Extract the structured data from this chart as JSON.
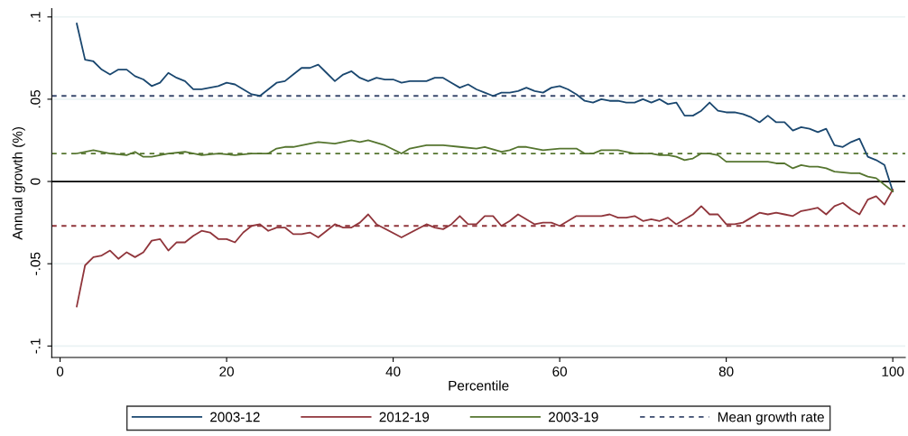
{
  "chart_data": {
    "type": "line",
    "xlabel": "Percentile",
    "ylabel": "Annual growth (%)",
    "xlim": [
      -1,
      101.5
    ],
    "xticks": [
      0,
      20,
      40,
      60,
      80,
      100
    ],
    "ylim": [
      -0.107,
      0.105
    ],
    "yticks": [
      {
        "value": -0.1,
        "label": "-.1"
      },
      {
        "value": -0.05,
        "label": "-.05"
      },
      {
        "value": 0,
        "label": "0"
      },
      {
        "value": 0.05,
        "label": ".05"
      },
      {
        "value": 0.1,
        "label": ".1"
      }
    ],
    "grid": "y",
    "legend": "bottom",
    "line_style": "solid",
    "marker": "none",
    "series": [
      {
        "name": "2003-12",
        "color": "#1a476f",
        "x": [
          2,
          3,
          4,
          5,
          6,
          7,
          8,
          9,
          10,
          11,
          12,
          13,
          14,
          15,
          16,
          17,
          18,
          19,
          20,
          21,
          22,
          23,
          24,
          25,
          26,
          27,
          28,
          29,
          30,
          31,
          32,
          33,
          34,
          35,
          36,
          37,
          38,
          39,
          40,
          41,
          42,
          43,
          44,
          45,
          46,
          47,
          48,
          49,
          50,
          51,
          52,
          53,
          54,
          55,
          56,
          57,
          58,
          59,
          60,
          61,
          62,
          63,
          64,
          65,
          66,
          67,
          68,
          69,
          70,
          71,
          72,
          73,
          74,
          75,
          76,
          77,
          78,
          79,
          80,
          81,
          82,
          83,
          84,
          85,
          86,
          87,
          88,
          89,
          90,
          91,
          92,
          93,
          94,
          95,
          96,
          97,
          98,
          99,
          100
        ],
        "values": [
          0.096,
          0.074,
          0.073,
          0.068,
          0.065,
          0.068,
          0.068,
          0.064,
          0.062,
          0.058,
          0.06,
          0.066,
          0.063,
          0.061,
          0.056,
          0.056,
          0.057,
          0.058,
          0.06,
          0.059,
          0.056,
          0.053,
          0.052,
          0.056,
          0.06,
          0.061,
          0.065,
          0.069,
          0.069,
          0.071,
          0.066,
          0.061,
          0.065,
          0.067,
          0.063,
          0.061,
          0.063,
          0.062,
          0.062,
          0.06,
          0.061,
          0.061,
          0.061,
          0.063,
          0.063,
          0.06,
          0.057,
          0.059,
          0.056,
          0.054,
          0.052,
          0.054,
          0.054,
          0.055,
          0.057,
          0.055,
          0.054,
          0.057,
          0.058,
          0.056,
          0.053,
          0.049,
          0.048,
          0.05,
          0.049,
          0.049,
          0.048,
          0.048,
          0.05,
          0.048,
          0.05,
          0.047,
          0.048,
          0.04,
          0.04,
          0.043,
          0.048,
          0.043,
          0.042,
          0.042,
          0.041,
          0.039,
          0.036,
          0.04,
          0.036,
          0.036,
          0.031,
          0.033,
          0.032,
          0.03,
          0.032,
          0.022,
          0.021,
          0.024,
          0.026,
          0.015,
          0.013,
          0.01,
          -0.006
        ]
      },
      {
        "name": "2012-19",
        "color": "#90353b",
        "x": [
          2,
          3,
          4,
          5,
          6,
          7,
          8,
          9,
          10,
          11,
          12,
          13,
          14,
          15,
          16,
          17,
          18,
          19,
          20,
          21,
          22,
          23,
          24,
          25,
          26,
          27,
          28,
          29,
          30,
          31,
          32,
          33,
          34,
          35,
          36,
          37,
          38,
          41,
          44,
          45,
          46,
          47,
          48,
          49,
          50,
          51,
          52,
          53,
          54,
          55,
          56,
          57,
          58,
          59,
          60,
          62,
          64,
          65,
          66,
          67,
          68,
          69,
          70,
          71,
          72,
          73,
          74,
          76,
          77,
          78,
          79,
          80,
          81,
          82,
          83,
          84,
          85,
          86,
          87,
          88,
          89,
          90,
          91,
          92,
          93,
          94,
          95,
          96,
          97,
          98,
          99,
          100
        ],
        "values": [
          -0.076,
          -0.051,
          -0.046,
          -0.045,
          -0.042,
          -0.047,
          -0.043,
          -0.046,
          -0.043,
          -0.036,
          -0.035,
          -0.042,
          -0.037,
          -0.037,
          -0.033,
          -0.03,
          -0.031,
          -0.035,
          -0.035,
          -0.037,
          -0.031,
          -0.027,
          -0.026,
          -0.03,
          -0.028,
          -0.028,
          -0.032,
          -0.032,
          -0.031,
          -0.034,
          -0.03,
          -0.026,
          -0.028,
          -0.028,
          -0.025,
          -0.02,
          -0.026,
          -0.034,
          -0.026,
          -0.028,
          -0.029,
          -0.026,
          -0.021,
          -0.026,
          -0.026,
          -0.021,
          -0.021,
          -0.027,
          -0.024,
          -0.02,
          -0.023,
          -0.026,
          -0.025,
          -0.025,
          -0.027,
          -0.021,
          -0.021,
          -0.021,
          -0.02,
          -0.022,
          -0.022,
          -0.021,
          -0.024,
          -0.023,
          -0.024,
          -0.022,
          -0.026,
          -0.02,
          -0.015,
          -0.02,
          -0.02,
          -0.026,
          -0.026,
          -0.025,
          -0.022,
          -0.019,
          -0.02,
          -0.019,
          -0.02,
          -0.021,
          -0.018,
          -0.017,
          -0.016,
          -0.02,
          -0.015,
          -0.013,
          -0.017,
          -0.02,
          -0.011,
          -0.009,
          -0.014,
          -0.005
        ]
      },
      {
        "name": "2003-19",
        "color": "#55752f",
        "x": [
          2,
          4,
          6,
          8,
          9,
          10,
          11,
          13,
          15,
          17,
          19,
          21,
          23,
          25,
          26,
          27,
          28,
          30,
          31,
          33,
          35,
          36,
          37,
          39,
          41,
          42,
          44,
          46,
          48,
          50,
          51,
          53,
          54,
          55,
          56,
          58,
          60,
          62,
          63,
          64,
          65,
          67,
          69,
          71,
          72,
          73,
          74,
          75,
          76,
          77,
          78,
          79,
          80,
          82,
          85,
          86,
          87,
          88,
          89,
          90,
          91,
          92,
          93,
          95,
          96,
          97,
          98,
          100
        ],
        "values": [
          0.017,
          0.019,
          0.017,
          0.016,
          0.018,
          0.015,
          0.015,
          0.017,
          0.018,
          0.016,
          0.017,
          0.016,
          0.017,
          0.017,
          0.02,
          0.021,
          0.021,
          0.023,
          0.024,
          0.023,
          0.025,
          0.024,
          0.025,
          0.022,
          0.017,
          0.02,
          0.022,
          0.022,
          0.021,
          0.02,
          0.021,
          0.018,
          0.019,
          0.021,
          0.021,
          0.019,
          0.02,
          0.02,
          0.017,
          0.017,
          0.019,
          0.019,
          0.017,
          0.017,
          0.016,
          0.016,
          0.015,
          0.013,
          0.014,
          0.017,
          0.017,
          0.016,
          0.012,
          0.012,
          0.012,
          0.011,
          0.011,
          0.008,
          0.01,
          0.009,
          0.009,
          0.008,
          0.006,
          0.005,
          0.005,
          0.003,
          0.002,
          -0.006
        ]
      }
    ],
    "ref_lines": [
      {
        "axis": "y",
        "value": 0.052,
        "label": "Mean growth rate",
        "color": "#3a4a6e",
        "line_style": "dashed"
      },
      {
        "axis": "y",
        "value": -0.027,
        "color": "#90353b",
        "line_style": "dashed"
      },
      {
        "axis": "y",
        "value": 0.017,
        "color": "#55752f",
        "line_style": "dashed"
      },
      {
        "axis": "y",
        "value": 0,
        "color": "#000000",
        "line_style": "solid"
      }
    ]
  }
}
